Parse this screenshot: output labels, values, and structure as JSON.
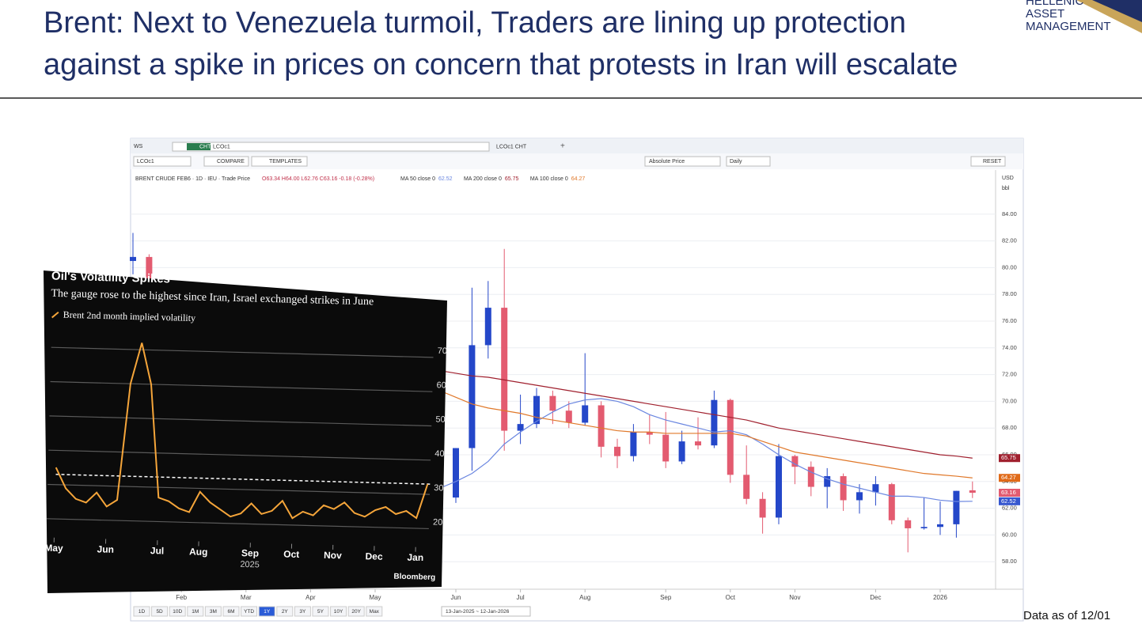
{
  "header": {
    "title_line1": "Brent: Next to Venezuela turmoil, Traders are lining up protection",
    "title_line2": "against a spike in prices on concern that protests in Iran will escalate",
    "logo_line1": "HELLENIC",
    "logo_line2": "ASSET",
    "logo_line3": "MANAGEMENT"
  },
  "terminal": {
    "tab_ws": "WS",
    "chip": "CHT",
    "ticker": "LCOc1",
    "tab_title": "LCOc1 CHT",
    "search": "LCOc1",
    "compare": "COMPARE",
    "templates": "TEMPLATES",
    "price_mode": "Absolute Price",
    "period": "Daily",
    "reset": "RESET",
    "currency": "USD",
    "unit": "bbl",
    "legend_title": "BRENT CRUDE FEB6 · 1D · IEU · Trade Price",
    "legend_ohlc": "O63.34 H64.00 L62.76 C63.16 -0.18 (-0.28%)",
    "range_buttons": [
      "1D",
      "5D",
      "10D",
      "1M",
      "3M",
      "6M",
      "YTD",
      "1Y",
      "2Y",
      "3Y",
      "5Y",
      "10Y",
      "20Y",
      "Max"
    ],
    "selected_range": "1Y",
    "date_range": "13-Jan-2025 ~ 12-Jan-2026"
  },
  "chart_data": [
    {
      "type": "candlestick",
      "categories": [
        null,
        null,
        null,
        "Feb",
        null,
        null,
        null,
        "Mar",
        null,
        null,
        null,
        "Apr",
        null,
        null,
        null,
        "May",
        null,
        null,
        null,
        null,
        "Jun",
        null,
        null,
        null,
        "Jul",
        null,
        null,
        null,
        "Aug",
        null,
        null,
        null,
        null,
        "Sep",
        null,
        null,
        null,
        "Oct",
        null,
        null,
        null,
        "Nov",
        null,
        null,
        null,
        null,
        "Dec",
        null,
        null,
        null,
        "2026",
        null,
        null
      ],
      "open": [
        80.5,
        80.8,
        78.5,
        76.8,
        74.7,
        74.7,
        74.4,
        73.2,
        70.4,
        70.6,
        72.2,
        73.6,
        65.6,
        64.8,
        68.0,
        66.9,
        61.3,
        63.9,
        65.4,
        64.8,
        62.8,
        66.5,
        74.2,
        77.0,
        67.8,
        68.3,
        70.4,
        69.3,
        68.4,
        69.7,
        66.6,
        65.9,
        67.7,
        67.5,
        65.5,
        67.0,
        66.7,
        70.1,
        64.5,
        62.7,
        61.3,
        65.9,
        65.1,
        63.6,
        64.4,
        62.6,
        63.2,
        63.8,
        61.1,
        60.5,
        60.6,
        60.8,
        63.34
      ],
      "high": [
        82.6,
        81.0,
        79.0,
        77.0,
        77.2,
        76.8,
        74.8,
        73.5,
        71.4,
        72.2,
        74.2,
        75.3,
        66.0,
        68.3,
        68.7,
        67.3,
        64.2,
        66.5,
        66.4,
        65.5,
        66.5,
        78.5,
        79.0,
        81.4,
        70.5,
        71.0,
        70.8,
        70.0,
        73.6,
        70.0,
        67.2,
        68.3,
        69.0,
        69.2,
        67.8,
        68.8,
        70.8,
        70.2,
        66.7,
        63.2,
        66.8,
        66.0,
        65.5,
        65.0,
        64.6,
        63.8,
        64.4,
        63.9,
        61.3,
        62.8,
        62.5,
        63.3,
        64.0
      ],
      "low": [
        79.5,
        77.8,
        75.8,
        74.2,
        74.5,
        74.3,
        72.3,
        68.3,
        69.0,
        70.2,
        71.8,
        64.0,
        58.4,
        64.0,
        65.3,
        58.8,
        60.5,
        62.6,
        63.7,
        62.3,
        62.4,
        64.8,
        73.2,
        66.3,
        66.8,
        68.0,
        68.3,
        68.0,
        68.2,
        65.8,
        65.0,
        65.5,
        66.8,
        65.0,
        65.3,
        66.4,
        66.5,
        63.9,
        62.3,
        60.1,
        60.8,
        63.8,
        62.9,
        62.0,
        61.8,
        61.6,
        62.2,
        60.8,
        58.7,
        60.4,
        60.0,
        59.8,
        62.76
      ],
      "close": [
        80.8,
        78.5,
        76.8,
        74.7,
        74.7,
        74.4,
        73.2,
        70.4,
        70.6,
        72.2,
        73.6,
        65.6,
        64.8,
        68.0,
        66.9,
        61.3,
        63.9,
        65.4,
        64.8,
        62.8,
        66.5,
        74.2,
        77.0,
        67.8,
        68.3,
        70.4,
        69.3,
        68.4,
        69.7,
        66.6,
        65.9,
        67.7,
        67.5,
        65.5,
        67.0,
        66.7,
        70.1,
        64.5,
        62.7,
        61.3,
        65.9,
        65.1,
        63.6,
        64.4,
        62.6,
        63.2,
        63.8,
        61.1,
        60.5,
        60.6,
        60.8,
        63.3,
        63.16
      ],
      "up_color": "#2447c9",
      "down_color": "#e35b70",
      "series": [
        {
          "name": "MA 50 close 0",
          "color": "#6a86e0",
          "tag_color": "#3657cf",
          "values": [
            null,
            null,
            null,
            null,
            null,
            null,
            null,
            null,
            null,
            null,
            null,
            null,
            null,
            null,
            null,
            null,
            null,
            null,
            null,
            63.5,
            64.0,
            64.6,
            65.5,
            66.8,
            67.7,
            68.5,
            69.2,
            69.8,
            70.1,
            70.2,
            70.0,
            69.6,
            69.0,
            68.6,
            68.3,
            68.0,
            67.7,
            67.8,
            67.5,
            66.8,
            66.0,
            65.3,
            64.7,
            64.2,
            63.8,
            63.5,
            63.2,
            62.9,
            62.9,
            62.8,
            62.6,
            62.5,
            62.52
          ]
        },
        {
          "name": "MA 200 close 0",
          "color": "#a0202e",
          "tag_color": "#a0202e",
          "values": [
            null,
            null,
            null,
            null,
            null,
            null,
            null,
            null,
            null,
            null,
            null,
            null,
            null,
            null,
            null,
            null,
            null,
            null,
            null,
            72.3,
            72.1,
            71.9,
            71.8,
            71.6,
            71.4,
            71.2,
            71.0,
            70.8,
            70.6,
            70.4,
            70.2,
            70.0,
            69.8,
            69.6,
            69.4,
            69.2,
            69.0,
            68.8,
            68.6,
            68.3,
            68.0,
            67.8,
            67.6,
            67.4,
            67.2,
            67.0,
            66.8,
            66.6,
            66.4,
            66.2,
            66.0,
            65.9,
            65.75
          ]
        },
        {
          "name": "MA 100 close 0",
          "color": "#e0782a",
          "tag_color": "#e06a18",
          "values": [
            null,
            null,
            null,
            null,
            null,
            null,
            null,
            null,
            null,
            null,
            null,
            null,
            null,
            null,
            null,
            null,
            null,
            null,
            null,
            70.8,
            70.3,
            69.8,
            69.5,
            69.3,
            69.1,
            68.8,
            68.6,
            68.4,
            68.2,
            68.0,
            67.8,
            67.7,
            67.7,
            67.6,
            67.6,
            67.6,
            67.6,
            67.6,
            67.4,
            67.0,
            66.6,
            66.2,
            66.0,
            65.8,
            65.6,
            65.4,
            65.2,
            65.0,
            64.8,
            64.6,
            64.5,
            64.4,
            64.27
          ]
        }
      ],
      "ylim": [
        56,
        86
      ],
      "yticks": [
        {
          "value": 58,
          "label": "58.00"
        },
        {
          "value": 60,
          "label": "60.00"
        },
        {
          "value": 62,
          "label": "62.00"
        },
        {
          "value": 64,
          "label": "64.00"
        },
        {
          "value": 66,
          "label": "66.00"
        },
        {
          "value": 68,
          "label": "68.00"
        },
        {
          "value": 70,
          "label": "70.00"
        },
        {
          "value": 72,
          "label": "72.00"
        },
        {
          "value": 74,
          "label": "74.00"
        },
        {
          "value": 76,
          "label": "76.00"
        },
        {
          "value": 78,
          "label": "78.00"
        },
        {
          "value": 80,
          "label": "80.00"
        },
        {
          "value": 82,
          "label": "82.00"
        },
        {
          "value": 84,
          "label": "84.00"
        }
      ],
      "grid": true
    },
    {
      "type": "line",
      "title": "Oil's Volatility Spikes",
      "subtitle": "The gauge rose to the highest since Iran, Israel exchanged strikes in June",
      "year_label": "2025",
      "source": "Bloomberg",
      "categories": [
        "May",
        null,
        null,
        null,
        null,
        "Jun",
        null,
        null,
        null,
        null,
        "Jul",
        null,
        null,
        null,
        "Aug",
        null,
        null,
        null,
        null,
        "Sep",
        null,
        null,
        null,
        "Oct",
        null,
        null,
        null,
        "Nov",
        null,
        null,
        null,
        "Dec",
        null,
        null,
        null,
        "Jan",
        null
      ],
      "series": [
        {
          "name": "Brent 2nd month implied volatility",
          "color": "#f5a53a",
          "values": [
            35,
            29,
            26,
            25,
            28,
            24,
            26,
            60,
            72,
            60,
            27,
            26,
            24,
            23,
            29,
            26,
            24,
            22,
            23,
            26,
            23,
            24,
            27,
            22,
            24,
            23,
            26,
            25,
            27,
            24,
            23,
            25,
            26,
            24,
            25,
            23,
            33
          ]
        }
      ],
      "reference_line": 33,
      "ylim": [
        15,
        75
      ],
      "yticks": [
        20,
        30,
        40,
        50,
        60,
        70
      ],
      "grid": true
    }
  ],
  "footer": "Data as of 12/01"
}
